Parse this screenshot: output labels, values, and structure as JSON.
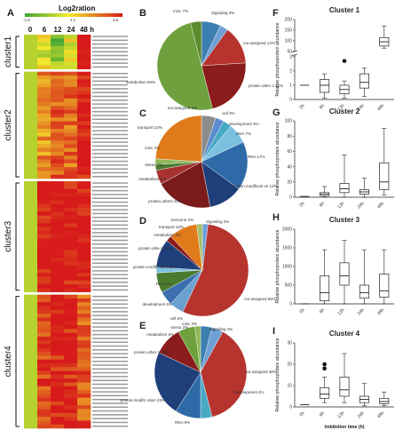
{
  "colors": {
    "low": "#3fa535",
    "mid": "#f3ea2b",
    "high": "#d71a1a",
    "box": "#222222"
  },
  "chart_data": [
    {
      "panel": "A",
      "type": "heatmap",
      "title": "Log2ration",
      "colorbar_ticks": [
        "-1.0",
        "1.1",
        "3.5"
      ],
      "columns": [
        "0",
        "6",
        "12",
        "24",
        "48 h"
      ],
      "clusters": [
        {
          "name": "cluster1",
          "rows": 9,
          "values": [
            0.0,
            0.5,
            -0.4,
            0.6,
            3.4
          ]
        },
        {
          "name": "cluster2",
          "rows": 28,
          "values": [
            0.0,
            1.6,
            2.2,
            2.0,
            3.0
          ]
        },
        {
          "name": "cluster3",
          "rows": 29,
          "values": [
            0.0,
            3.0,
            3.3,
            3.0,
            3.1
          ]
        },
        {
          "name": "cluster4",
          "rows": 35,
          "values": [
            0.0,
            2.5,
            2.9,
            2.8,
            2.2
          ]
        }
      ]
    },
    {
      "panel": "B",
      "type": "pie",
      "slices": [
        {
          "label": "misc 7%",
          "value": 7,
          "color": "#3d7fb0"
        },
        {
          "label": "Signaling 3%",
          "value": 3,
          "color": "#6ea0d6"
        },
        {
          "label": "not assigned 14%",
          "value": 14,
          "color": "#b6332e"
        },
        {
          "label": "protein.other s 22%",
          "value": 22,
          "color": "#8a1c1c"
        },
        {
          "label": "metabolism 50%",
          "value": 50,
          "color": "#6ea13d"
        },
        {
          "label": "",
          "value": 4,
          "color": "#5e8a2e"
        }
      ]
    },
    {
      "panel": "C",
      "type": "pie",
      "slices": [
        {
          "label": "not assigned 5%",
          "value": 5,
          "color": "#8c8c8c"
        },
        {
          "label": "cell 3%",
          "value": 3,
          "color": "#5b8bd0"
        },
        {
          "label": "development 3%",
          "value": 3,
          "color": "#48a9c5"
        },
        {
          "label": "DNA 7%",
          "value": 7,
          "color": "#7cc0e0"
        },
        {
          "label": "RNA 17%",
          "value": 17,
          "color": "#2f6aa8"
        },
        {
          "label": "protein.modificati on 12%",
          "value": 12,
          "color": "#1f3f7a"
        },
        {
          "label": "protein.others 20%",
          "value": 20,
          "color": "#7a1a1a"
        },
        {
          "label": "metabolism 5%",
          "value": 5,
          "color": "#a83232"
        },
        {
          "label": "stress 2%",
          "value": 2,
          "color": "#4a7a2e"
        },
        {
          "label": "misc 2%",
          "value": 2,
          "color": "#8fb85a"
        },
        {
          "label": "transport 24%",
          "value": 24,
          "color": "#e07b1a"
        }
      ]
    },
    {
      "panel": "D",
      "type": "pie",
      "slices": [
        {
          "label": "Signaling 2%",
          "value": 2,
          "color": "#6ea0d6"
        },
        {
          "label": "not assigned 55%",
          "value": 55,
          "color": "#b6332e"
        },
        {
          "label": "cell 5%",
          "value": 5,
          "color": "#6aa0d0"
        },
        {
          "label": "development 5%",
          "value": 5,
          "color": "#3d6fb0"
        },
        {
          "label": "RNA 7%",
          "value": 7,
          "color": "#4a7a2e"
        },
        {
          "label": "protein.modifi cation 2%",
          "value": 2,
          "color": "#7cc0e0"
        },
        {
          "label": "protein.othe rs 10%",
          "value": 10,
          "color": "#1f3f7a"
        },
        {
          "label": "metabolism 2%",
          "value": 2,
          "color": "#8a1c1c"
        },
        {
          "label": "transport 10%",
          "value": 10,
          "color": "#e07b1a"
        },
        {
          "label": "hormone 2%",
          "value": 2,
          "color": "#a8c06a"
        }
      ]
    },
    {
      "panel": "E",
      "type": "pie",
      "slices": [
        {
          "label": "misc 4%",
          "value": 4,
          "color": "#3d7fb0"
        },
        {
          "label": "Signaling 4%",
          "value": 4,
          "color": "#6ea0d6"
        },
        {
          "label": "not assigned 38%",
          "value": 38,
          "color": "#b6332e"
        },
        {
          "label": "development 4%",
          "value": 4,
          "color": "#48a9c5"
        },
        {
          "label": "RNA 9%",
          "value": 9,
          "color": "#2f6aa8"
        },
        {
          "label": "protein.modific ation 23%",
          "value": 23,
          "color": "#1f3f7a"
        },
        {
          "label": "protein.other s 10%",
          "value": 10,
          "color": "#8a1c1c"
        },
        {
          "label": "metabolism 6%",
          "value": 6,
          "color": "#6ea13d"
        },
        {
          "label": "stress 2%",
          "value": 2,
          "color": "#8fb85a"
        }
      ]
    },
    {
      "panel": "F",
      "type": "box",
      "title": "Cluster 1",
      "ylabel": "Relative phosphoprotein abundance",
      "categories": [
        "0h",
        "6h",
        "12h",
        "24h",
        "48h"
      ],
      "y_break": true,
      "low_ticks": [
        0,
        1,
        2,
        3
      ],
      "high_ticks": [
        50,
        100,
        150,
        200
      ],
      "boxes": [
        {
          "min": 1,
          "q1": 1,
          "med": 1,
          "q3": 1,
          "max": 1
        },
        {
          "min": 0.1,
          "q1": 0.5,
          "med": 1.0,
          "q3": 1.4,
          "max": 1.8
        },
        {
          "min": 0.1,
          "q1": 0.4,
          "med": 0.7,
          "q3": 1.0,
          "max": 1.3,
          "outliers": [
            2.7
          ]
        },
        {
          "min": 0.2,
          "q1": 0.8,
          "med": 1.2,
          "q3": 1.8,
          "max": 2.2
        },
        {
          "min": 65,
          "q1": 75,
          "med": 95,
          "q3": 115,
          "max": 170
        }
      ]
    },
    {
      "panel": "G",
      "type": "box",
      "title": "Cluster 2",
      "ylabel": "Relative phosphoprotein abundance",
      "categories": [
        "0h",
        "6h",
        "12h",
        "24h",
        "48h"
      ],
      "ylim": [
        0,
        100
      ],
      "ticks": [
        0,
        20,
        40,
        60,
        80,
        100
      ],
      "boxes": [
        {
          "min": 1,
          "q1": 1,
          "med": 1,
          "q3": 1,
          "max": 1
        },
        {
          "min": 0,
          "q1": 2,
          "med": 4,
          "q3": 6,
          "max": 14
        },
        {
          "min": 0,
          "q1": 6,
          "med": 11,
          "q3": 18,
          "max": 55
        },
        {
          "min": 0,
          "q1": 4,
          "med": 7,
          "q3": 10,
          "max": 25
        },
        {
          "min": 3,
          "q1": 10,
          "med": 20,
          "q3": 45,
          "max": 90
        }
      ]
    },
    {
      "panel": "H",
      "type": "box",
      "title": "Cluster 3",
      "ylabel": "Relative phosphoprotein abundance",
      "categories": [
        "0h",
        "6h",
        "12h",
        "24h",
        "48h"
      ],
      "ylim": [
        0,
        2000
      ],
      "ticks": [
        0,
        500,
        1000,
        1500,
        2000
      ],
      "boxes": [
        {
          "min": 1,
          "q1": 1,
          "med": 1,
          "q3": 1,
          "max": 1
        },
        {
          "min": 0,
          "q1": 80,
          "med": 300,
          "q3": 750,
          "max": 1450
        },
        {
          "min": 0,
          "q1": 500,
          "med": 750,
          "q3": 1100,
          "max": 1700
        },
        {
          "min": 0,
          "q1": 150,
          "med": 300,
          "q3": 500,
          "max": 1450
        },
        {
          "min": 0,
          "q1": 180,
          "med": 350,
          "q3": 800,
          "max": 1450
        }
      ]
    },
    {
      "panel": "I",
      "type": "box",
      "title": "Cluster 4",
      "ylabel": "Relative phosphoprotein abundance",
      "xlabel": "Imbibition time (h)",
      "categories": [
        "0h",
        "6h",
        "12h",
        "24h",
        "48h"
      ],
      "ylim": [
        0,
        30
      ],
      "ticks": [
        0,
        10,
        20,
        30
      ],
      "boxes": [
        {
          "min": 1,
          "q1": 1,
          "med": 1,
          "q3": 1,
          "max": 1
        },
        {
          "min": 2,
          "q1": 4,
          "med": 6,
          "q3": 9,
          "max": 14,
          "outliers": [
            18,
            20
          ]
        },
        {
          "min": 2,
          "q1": 5,
          "med": 8,
          "q3": 14,
          "max": 25
        },
        {
          "min": 0.5,
          "q1": 2,
          "med": 3.5,
          "q3": 5,
          "max": 11
        },
        {
          "min": 0.5,
          "q1": 1.5,
          "med": 2.5,
          "q3": 4,
          "max": 7
        }
      ]
    }
  ],
  "panel_letters": [
    "A",
    "B",
    "C",
    "D",
    "E",
    "F",
    "G",
    "H",
    "I"
  ]
}
